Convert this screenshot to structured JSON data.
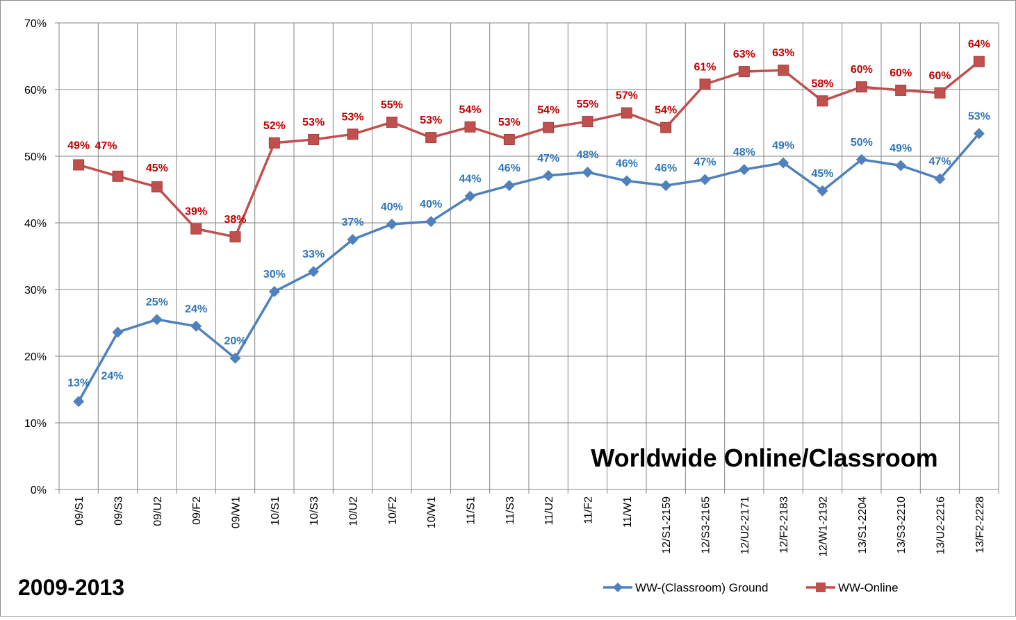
{
  "chart_data": {
    "type": "line",
    "title": "Worldwide Online/Classroom",
    "period_label": "2009-2013",
    "ylim": [
      0,
      70
    ],
    "y_ticks": [
      "0%",
      "10%",
      "20%",
      "30%",
      "40%",
      "50%",
      "60%",
      "70%"
    ],
    "grid": true,
    "legend_position": "bottom-right",
    "categories": [
      "09/S1",
      "09/S3",
      "09/U2",
      "09/F2",
      "09/W1",
      "10/S1",
      "10/S3",
      "10/U2",
      "10/F2",
      "10/W1",
      "11/S1",
      "11/S3",
      "11/U2",
      "11/F2",
      "11/W1",
      "12/S1-2159",
      "12/S3-2165",
      "12/U2-2171",
      "12/F2-2183",
      "12/W1-2192",
      "13/S1-2204",
      "13/S3-2210",
      "13/U2-2216",
      "13/F2-2228"
    ],
    "series": [
      {
        "name": "WW-(Classroom) Ground",
        "color": "#4f81bd",
        "label_color": "#2e75b6",
        "marker": "diamond",
        "values": [
          13.2,
          23.6,
          25.5,
          24.5,
          19.7,
          29.7,
          32.7,
          37.5,
          39.8,
          40.2,
          44.0,
          45.6,
          47.1,
          47.6,
          46.3,
          45.6,
          46.5,
          48.0,
          49.0,
          44.8,
          49.5,
          48.6,
          46.6,
          53.4
        ],
        "labels": [
          "13%",
          "24%",
          "25%",
          "24%",
          "20%",
          "30%",
          "33%",
          "37%",
          "40%",
          "40%",
          "44%",
          "46%",
          "47%",
          "48%",
          "46%",
          "46%",
          "47%",
          "48%",
          "49%",
          "45%",
          "50%",
          "49%",
          "47%",
          "53%"
        ]
      },
      {
        "name": "WW-Online",
        "color": "#c0504d",
        "label_color": "#c00000",
        "marker": "square",
        "values": [
          48.7,
          47.0,
          45.4,
          39.1,
          37.9,
          52.0,
          52.5,
          53.3,
          55.1,
          52.8,
          54.4,
          52.5,
          54.3,
          55.2,
          56.5,
          54.3,
          60.8,
          62.7,
          62.9,
          58.3,
          60.4,
          59.9,
          59.5,
          64.2
        ],
        "labels": [
          "49%",
          "47%",
          "45%",
          "39%",
          "38%",
          "52%",
          "53%",
          "53%",
          "55%",
          "53%",
          "54%",
          "53%",
          "54%",
          "55%",
          "57%",
          "54%",
          "61%",
          "63%",
          "63%",
          "58%",
          "60%",
          "60%",
          "60%",
          "64%"
        ]
      }
    ]
  }
}
